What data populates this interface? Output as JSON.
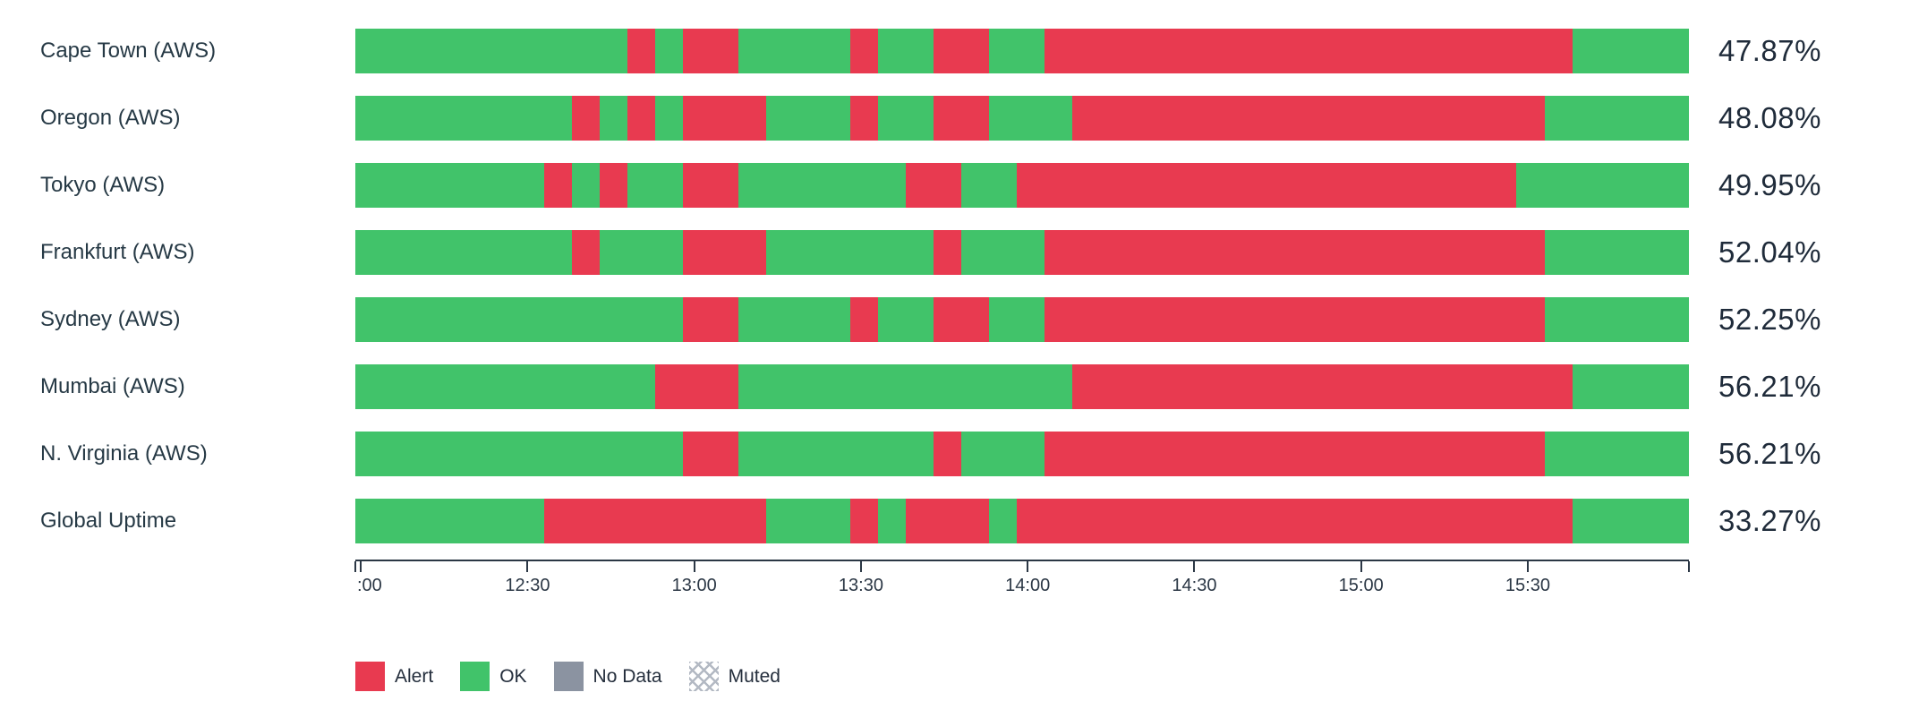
{
  "colors": {
    "ok": "#41c36a",
    "alert": "#e83a50",
    "no_data": "#8b93a1",
    "muted_hatch": "#b3b9c3",
    "label_text": "#263945",
    "uptime_text": "#1f2b3a",
    "axis": "#2b3745"
  },
  "legend": {
    "items": [
      {
        "key": "alert",
        "label": "Alert"
      },
      {
        "key": "ok",
        "label": "OK"
      },
      {
        "key": "no_data",
        "label": "No Data"
      },
      {
        "key": "muted",
        "label": "Muted"
      }
    ]
  },
  "chart_data": {
    "type": "bar",
    "variant": "status-timeline",
    "title": "",
    "xlabel": "",
    "ylabel": "",
    "time_domain": {
      "start": "11:59",
      "end": "15:59",
      "total_minutes": 240
    },
    "axis": {
      "total_minutes": 240,
      "ticks": [
        {
          "m": 0,
          "label": ""
        },
        {
          "m": 1,
          "label": ":00",
          "clipped": true
        },
        {
          "m": 31,
          "label": "12:30"
        },
        {
          "m": 61,
          "label": "13:00"
        },
        {
          "m": 91,
          "label": "13:30"
        },
        {
          "m": 121,
          "label": "14:00"
        },
        {
          "m": 151,
          "label": "14:30"
        },
        {
          "m": 181,
          "label": "15:00"
        },
        {
          "m": 211,
          "label": "15:30"
        },
        {
          "m": 240,
          "label": ""
        }
      ]
    },
    "categories": [
      "Cape Town (AWS)",
      "Oregon (AWS)",
      "Tokyo (AWS)",
      "Frankfurt (AWS)",
      "Sydney (AWS)",
      "Mumbai (AWS)",
      "N. Virginia (AWS)",
      "Global Uptime"
    ],
    "uptime_values": [
      47.87,
      48.08,
      49.95,
      52.04,
      52.25,
      56.21,
      56.21,
      33.27
    ],
    "rows": [
      {
        "label": "Cape Town (AWS)",
        "uptime": "47.87%",
        "segments": [
          {
            "status": "ok",
            "start": 0,
            "end": 49
          },
          {
            "status": "alert",
            "start": 49,
            "end": 54
          },
          {
            "status": "ok",
            "start": 54,
            "end": 59
          },
          {
            "status": "alert",
            "start": 59,
            "end": 69
          },
          {
            "status": "ok",
            "start": 69,
            "end": 89
          },
          {
            "status": "alert",
            "start": 89,
            "end": 94
          },
          {
            "status": "ok",
            "start": 94,
            "end": 104
          },
          {
            "status": "alert",
            "start": 104,
            "end": 114
          },
          {
            "status": "ok",
            "start": 114,
            "end": 124
          },
          {
            "status": "alert",
            "start": 124,
            "end": 219
          },
          {
            "status": "ok",
            "start": 219,
            "end": 240
          }
        ]
      },
      {
        "label": "Oregon (AWS)",
        "uptime": "48.08%",
        "segments": [
          {
            "status": "ok",
            "start": 0,
            "end": 39
          },
          {
            "status": "alert",
            "start": 39,
            "end": 44
          },
          {
            "status": "ok",
            "start": 44,
            "end": 49
          },
          {
            "status": "alert",
            "start": 49,
            "end": 54
          },
          {
            "status": "ok",
            "start": 54,
            "end": 59
          },
          {
            "status": "alert",
            "start": 59,
            "end": 74
          },
          {
            "status": "ok",
            "start": 74,
            "end": 89
          },
          {
            "status": "alert",
            "start": 89,
            "end": 94
          },
          {
            "status": "ok",
            "start": 94,
            "end": 104
          },
          {
            "status": "alert",
            "start": 104,
            "end": 114
          },
          {
            "status": "ok",
            "start": 114,
            "end": 129
          },
          {
            "status": "alert",
            "start": 129,
            "end": 214
          },
          {
            "status": "ok",
            "start": 214,
            "end": 240
          }
        ]
      },
      {
        "label": "Tokyo (AWS)",
        "uptime": "49.95%",
        "segments": [
          {
            "status": "ok",
            "start": 0,
            "end": 34
          },
          {
            "status": "alert",
            "start": 34,
            "end": 39
          },
          {
            "status": "ok",
            "start": 39,
            "end": 44
          },
          {
            "status": "alert",
            "start": 44,
            "end": 49
          },
          {
            "status": "ok",
            "start": 49,
            "end": 59
          },
          {
            "status": "alert",
            "start": 59,
            "end": 69
          },
          {
            "status": "ok",
            "start": 69,
            "end": 99
          },
          {
            "status": "alert",
            "start": 99,
            "end": 109
          },
          {
            "status": "ok",
            "start": 109,
            "end": 119
          },
          {
            "status": "alert",
            "start": 119,
            "end": 209
          },
          {
            "status": "ok",
            "start": 209,
            "end": 240
          }
        ]
      },
      {
        "label": "Frankfurt (AWS)",
        "uptime": "52.04%",
        "segments": [
          {
            "status": "ok",
            "start": 0,
            "end": 39
          },
          {
            "status": "alert",
            "start": 39,
            "end": 44
          },
          {
            "status": "ok",
            "start": 44,
            "end": 59
          },
          {
            "status": "alert",
            "start": 59,
            "end": 74
          },
          {
            "status": "ok",
            "start": 74,
            "end": 104
          },
          {
            "status": "alert",
            "start": 104,
            "end": 109
          },
          {
            "status": "ok",
            "start": 109,
            "end": 124
          },
          {
            "status": "alert",
            "start": 124,
            "end": 214
          },
          {
            "status": "ok",
            "start": 214,
            "end": 240
          }
        ]
      },
      {
        "label": "Sydney (AWS)",
        "uptime": "52.25%",
        "segments": [
          {
            "status": "ok",
            "start": 0,
            "end": 59
          },
          {
            "status": "alert",
            "start": 59,
            "end": 69
          },
          {
            "status": "ok",
            "start": 69,
            "end": 89
          },
          {
            "status": "alert",
            "start": 89,
            "end": 94
          },
          {
            "status": "ok",
            "start": 94,
            "end": 104
          },
          {
            "status": "alert",
            "start": 104,
            "end": 114
          },
          {
            "status": "ok",
            "start": 114,
            "end": 124
          },
          {
            "status": "alert",
            "start": 124,
            "end": 214
          },
          {
            "status": "ok",
            "start": 214,
            "end": 240
          }
        ]
      },
      {
        "label": "Mumbai (AWS)",
        "uptime": "56.21%",
        "segments": [
          {
            "status": "ok",
            "start": 0,
            "end": 54
          },
          {
            "status": "alert",
            "start": 54,
            "end": 69
          },
          {
            "status": "ok",
            "start": 69,
            "end": 129
          },
          {
            "status": "alert",
            "start": 129,
            "end": 219
          },
          {
            "status": "ok",
            "start": 219,
            "end": 240
          }
        ]
      },
      {
        "label": "N. Virginia (AWS)",
        "uptime": "56.21%",
        "segments": [
          {
            "status": "ok",
            "start": 0,
            "end": 59
          },
          {
            "status": "alert",
            "start": 59,
            "end": 69
          },
          {
            "status": "ok",
            "start": 69,
            "end": 104
          },
          {
            "status": "alert",
            "start": 104,
            "end": 109
          },
          {
            "status": "ok",
            "start": 109,
            "end": 124
          },
          {
            "status": "alert",
            "start": 124,
            "end": 214
          },
          {
            "status": "ok",
            "start": 214,
            "end": 240
          }
        ]
      },
      {
        "label": "Global Uptime",
        "uptime": "33.27%",
        "segments": [
          {
            "status": "ok",
            "start": 0,
            "end": 34
          },
          {
            "status": "alert",
            "start": 34,
            "end": 74
          },
          {
            "status": "ok",
            "start": 74,
            "end": 89
          },
          {
            "status": "alert",
            "start": 89,
            "end": 94
          },
          {
            "status": "ok",
            "start": 94,
            "end": 99
          },
          {
            "status": "alert",
            "start": 99,
            "end": 114
          },
          {
            "status": "ok",
            "start": 114,
            "end": 119
          },
          {
            "status": "alert",
            "start": 119,
            "end": 219
          },
          {
            "status": "ok",
            "start": 219,
            "end": 240
          }
        ]
      }
    ]
  }
}
